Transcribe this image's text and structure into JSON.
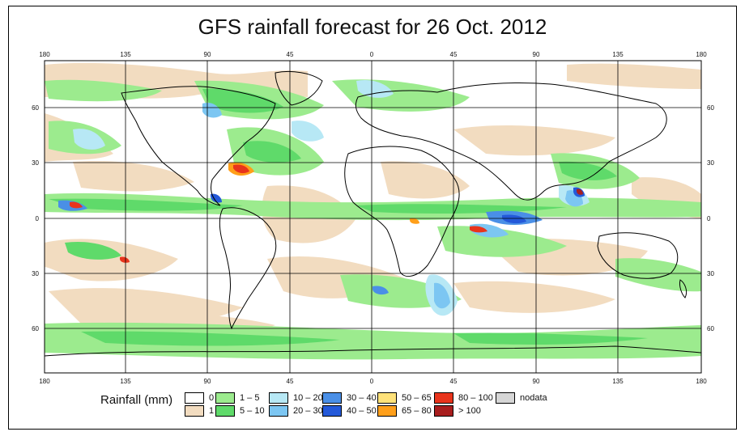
{
  "title": "GFS rainfall forecast for 26 Oct. 2012",
  "map": {
    "lon_ticks": [
      "180",
      "135",
      "90",
      "45",
      "0",
      "45",
      "90",
      "135",
      "180"
    ],
    "lat_ticks": [
      "60",
      "30",
      "0",
      "30",
      "60"
    ],
    "colors": {
      "ocean_dry": "#ffffff",
      "rain_1": "#f2dcc0",
      "rain_1_5": "#9ceb8e",
      "rain_5_10": "#5fda6a",
      "rain_10_20": "#b7e8f5",
      "rain_20_30": "#7cc6f2",
      "rain_30_40": "#4a8fe6",
      "rain_40_50": "#2459d9",
      "rain_50_65": "#ffe27a",
      "rain_65_80": "#ff9f1a",
      "rain_80_100": "#e8341c",
      "rain_gt_100": "#a81e1e",
      "nodata": "#d6d6d6"
    }
  },
  "legend": {
    "title": "Rainfall (mm)",
    "items": [
      {
        "label": "0",
        "color": "#ffffff"
      },
      {
        "label": "1",
        "color": "#f2dcc0"
      },
      {
        "label": "1 – 5",
        "color": "#9ceb8e"
      },
      {
        "label": "5 – 10",
        "color": "#5fda6a"
      },
      {
        "label": "10 – 20",
        "color": "#b7e8f5"
      },
      {
        "label": "20 – 30",
        "color": "#7cc6f2"
      },
      {
        "label": "30 – 40",
        "color": "#4a8fe6"
      },
      {
        "label": "40 – 50",
        "color": "#2459d9"
      },
      {
        "label": "50 – 65",
        "color": "#ffe27a"
      },
      {
        "label": "65 – 80",
        "color": "#ff9f1a"
      },
      {
        "label": "80 – 100",
        "color": "#e8341c"
      },
      {
        "label": "> 100",
        "color": "#a81e1e"
      },
      {
        "label": "nodata",
        "color": "#d6d6d6"
      }
    ]
  }
}
